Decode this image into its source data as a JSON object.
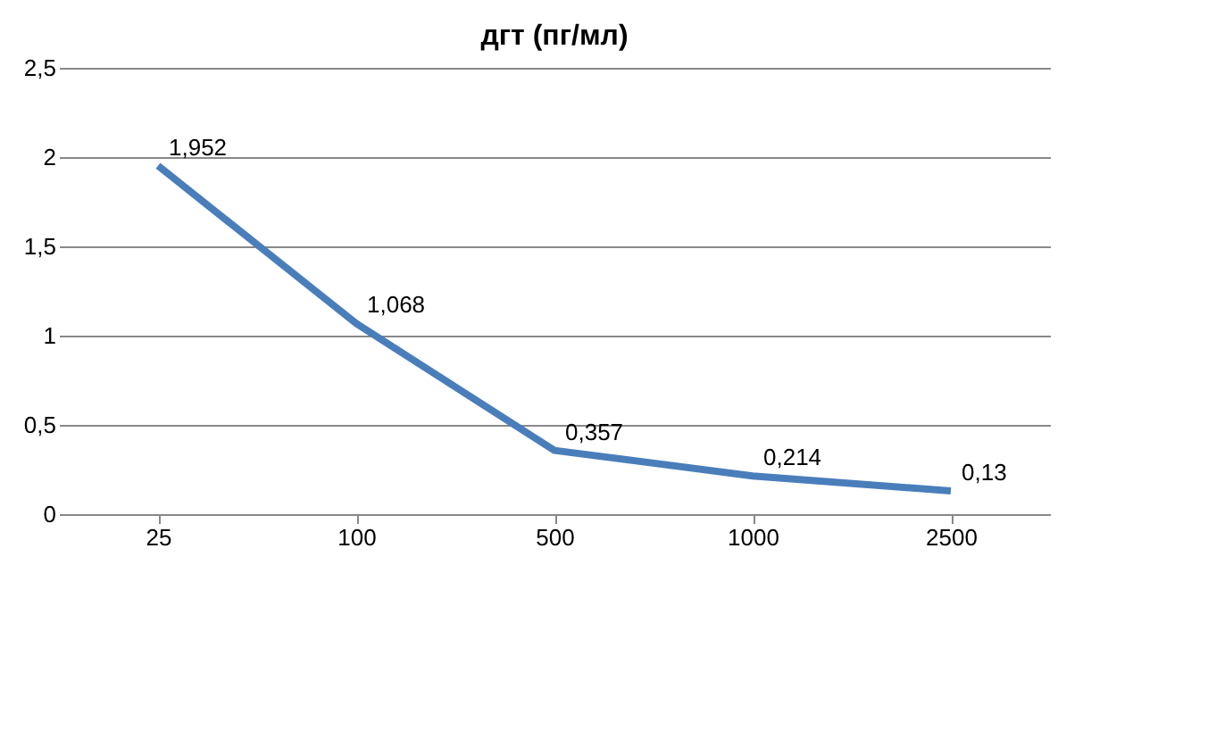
{
  "chart_data": {
    "type": "line",
    "title": "дгт (пг/мл)",
    "categories": [
      "25",
      "100",
      "500",
      "1000",
      "2500"
    ],
    "series": [
      {
        "color": "#4a7ebb",
        "values": [
          1.952,
          1.068,
          0.357,
          0.214,
          0.13
        ],
        "value_labels": [
          "1,952",
          "1,068",
          "0,357",
          "0,214",
          "0,13"
        ]
      }
    ],
    "ylim": [
      0,
      2.5
    ],
    "yticks": [
      0,
      {
        "value": 0.5,
        "label": "0,5"
      },
      1,
      {
        "value": 1.5,
        "label": "1,5"
      },
      2,
      {
        "value": 2.5,
        "label": "2,5"
      }
    ],
    "grid": "y",
    "marker": "none",
    "line_style": "solid"
  }
}
